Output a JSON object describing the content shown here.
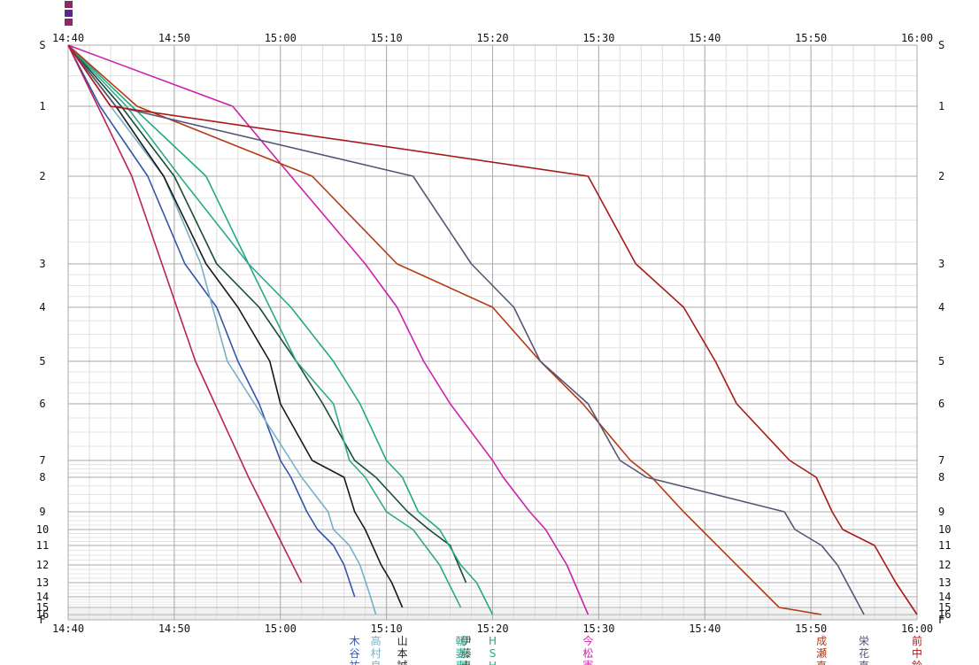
{
  "chart_data": {
    "type": "line",
    "title": "",
    "xlabel": "",
    "ylabel": "",
    "x_unit": "time",
    "xlim": [
      "14:40",
      "16:00"
    ],
    "x_ticks": [
      "14:40",
      "14:50",
      "15:00",
      "15:10",
      "15:20",
      "15:30",
      "15:40",
      "15:50",
      "16:00"
    ],
    "y_ticks": [
      "S",
      "1",
      "2",
      "3",
      "4",
      "5",
      "6",
      "7",
      "8",
      "9",
      "10",
      "11",
      "12",
      "13",
      "14",
      "15",
      "16",
      "F"
    ],
    "grid": true,
    "series": [
      {
        "label_lines": [
          "木",
          "谷",
          "祐"
        ],
        "color": "#3355aa",
        "x": [
          "14:40:00",
          "14:43:00",
          "14:47:30",
          "14:51:00",
          "14:54:00",
          "14:56:00",
          "14:58:00",
          "15:00:00",
          "15:01:00",
          "15:02:30",
          "15:03:30",
          "15:05:00",
          "15:06:00",
          "15:07:00"
        ],
        "y": [
          0,
          1,
          2,
          3,
          4,
          5,
          6,
          7,
          8,
          9,
          10,
          11,
          12,
          14
        ]
      },
      {
        "label_lines": [
          "高",
          "村",
          "良"
        ],
        "color": "#77b0c8",
        "x": [
          "14:40:00",
          "14:44:00",
          "14:49:00",
          "14:52:30",
          "14:55:00",
          "15:01:00",
          "15:02:00",
          "15:04:30",
          "15:05:00",
          "15:06:30",
          "15:07:30",
          "15:08:30",
          "15:09:00"
        ],
        "y": [
          0,
          1,
          2,
          3,
          5,
          7,
          8,
          9,
          10,
          11,
          12,
          14,
          16
        ]
      },
      {
        "label_lines": [
          "山",
          "本",
          "誠"
        ],
        "color": "#1a1a1a",
        "x": [
          "14:40:00",
          "14:44:30",
          "14:49:00",
          "14:53:00",
          "14:56:00",
          "14:59:00",
          "15:00:00",
          "15:03:00",
          "15:06:00",
          "15:07:00",
          "15:08:00",
          "15:09:30",
          "15:10:30",
          "15:11:30"
        ],
        "y": [
          0,
          1,
          2,
          3,
          4,
          5,
          6,
          7,
          8,
          9,
          10,
          12,
          13,
          15
        ]
      },
      {
        "label_lines": [
          "伊",
          "藤",
          "恵"
        ],
        "color": "#1a4d33",
        "x": [
          "14:40:00",
          "14:45:00",
          "14:50:00",
          "14:54:00",
          "14:58:00",
          "15:01:30",
          "15:04:00",
          "15:07:00",
          "15:09:00",
          "15:12:00",
          "15:14:00",
          "15:16:00",
          "15:17:30"
        ],
        "y": [
          0,
          1,
          2,
          3,
          4,
          5,
          6,
          7,
          8,
          9,
          10,
          11,
          13
        ]
      },
      {
        "label_lines": [
          "朝",
          "妻",
          "恵"
        ],
        "color": "#2ea88c",
        "x": [
          "14:40:00",
          "14:45:30",
          "14:50:30",
          "14:57:00",
          "14:59:00",
          "15:01:30",
          "15:05:00",
          "15:06:30",
          "15:08:00",
          "15:10:00",
          "15:12:30",
          "15:15:00",
          "15:17:00"
        ],
        "y": [
          0,
          1,
          2,
          3,
          4,
          5,
          6,
          7,
          8,
          9,
          10,
          12,
          15
        ]
      },
      {
        "label_lines": [
          "H",
          "S",
          "H"
        ],
        "color": "#22aa88",
        "x": [
          "14:40:00",
          "14:46:00",
          "14:53:00",
          "14:57:00",
          "15:01:00",
          "15:05:00",
          "15:07:30",
          "15:10:00",
          "15:11:30",
          "15:13:00",
          "15:15:00",
          "15:17:00",
          "15:18:30",
          "15:20:00"
        ],
        "y": [
          0,
          1,
          2,
          3,
          4,
          5,
          6,
          7,
          8,
          9,
          10,
          12,
          13,
          16
        ]
      },
      {
        "label_lines": [
          "今",
          "松",
          "憲"
        ],
        "color": "#cc22aa",
        "x": [
          "14:40:00",
          "14:55:30",
          "15:01:00",
          "15:08:00",
          "15:11:00",
          "15:13:30",
          "15:16:00",
          "15:20:00",
          "15:21:00",
          "15:23:30",
          "15:25:00",
          "15:27:00",
          "15:29:00"
        ],
        "y": [
          0,
          1,
          2,
          3,
          4,
          5,
          6,
          7,
          8,
          9,
          10,
          12,
          16
        ]
      },
      {
        "label_lines": [
          "成",
          "瀬",
          "直"
        ],
        "color": "#b33c14",
        "x": [
          "14:40:00",
          "14:46:30",
          "15:03:00",
          "15:11:00",
          "15:20:00",
          "15:24:30",
          "15:28:30",
          "15:33:00",
          "15:35:00",
          "15:38:00",
          "15:43:00",
          "15:47:00",
          "15:51:00"
        ],
        "y": [
          0,
          1,
          2,
          3,
          4,
          5,
          6,
          7,
          8,
          9,
          12,
          15,
          16
        ]
      },
      {
        "label_lines": [
          "栄",
          "花",
          "直"
        ],
        "color": "#555577",
        "x": [
          "14:40:00",
          "14:44:30",
          "15:12:30",
          "15:18:00",
          "15:22:00",
          "15:24:30",
          "15:29:00",
          "15:32:00",
          "15:34:30",
          "15:47:30",
          "15:48:30",
          "15:51:00",
          "15:52:30",
          "15:55:00"
        ],
        "y": [
          0,
          1,
          2,
          3,
          4,
          5,
          6,
          7,
          8,
          9,
          10,
          11,
          12,
          16
        ]
      },
      {
        "label_lines": [
          "前",
          "中",
          "鈴"
        ],
        "color": "#a81a1a",
        "x": [
          "14:40:00",
          "14:44:00",
          "15:29:00",
          "15:33:30",
          "15:38:00",
          "15:41:00",
          "15:43:00",
          "15:48:00",
          "15:50:30",
          "15:52:00",
          "15:53:00",
          "15:56:00",
          "15:58:00",
          "16:00:00"
        ],
        "y": [
          0,
          1,
          2,
          3,
          4,
          5,
          6,
          7,
          8,
          9,
          10,
          11,
          13,
          16
        ]
      },
      {
        "label_lines": [],
        "color": "#bb2255",
        "x": [
          "14:40:00",
          "14:46:00",
          "14:52:00",
          "14:57:00",
          "15:02:00"
        ],
        "y": [
          0,
          2,
          5,
          8,
          13
        ]
      }
    ]
  }
}
